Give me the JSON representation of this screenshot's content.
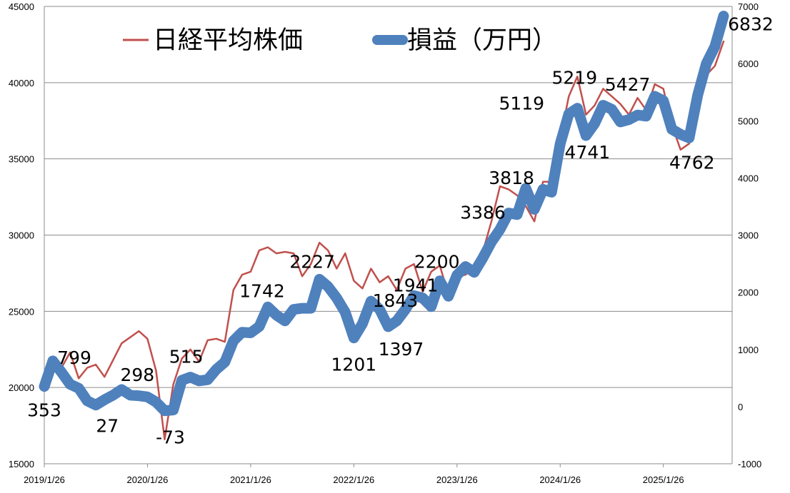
{
  "chart_data": {
    "type": "line",
    "title": "",
    "xlabel": "",
    "y_left_label": "",
    "y_right_label": "",
    "x_range": [
      "2019/1/26",
      "2025/9/26"
    ],
    "x_tick_labels": [
      "2019/1/26",
      "2020/1/26",
      "2021/1/26",
      "2022/1/26",
      "2023/1/26",
      "2024/1/26",
      "2025/1/26"
    ],
    "y_left": {
      "min": 15000,
      "max": 45000,
      "ticks": [
        "15000",
        "20000",
        "25000",
        "30000",
        "35000",
        "40000",
        "45000"
      ]
    },
    "y_right": {
      "min": -1000,
      "max": 7000,
      "ticks": [
        "-1000",
        "0",
        "1000",
        "2000",
        "3000",
        "4000",
        "5000",
        "6000",
        "7000"
      ]
    },
    "grid": "horizontal",
    "legend_position": "top",
    "series": [
      {
        "name": "日経平均株価",
        "axis": "left",
        "color": "#C0504D",
        "points": [
          [
            "2019-01",
            20800
          ],
          [
            "2019-02",
            21400
          ],
          [
            "2019-03",
            21300
          ],
          [
            "2019-04",
            22300
          ],
          [
            "2019-05",
            20600
          ],
          [
            "2019-06",
            21300
          ],
          [
            "2019-07",
            21500
          ],
          [
            "2019-08",
            20700
          ],
          [
            "2019-09",
            21800
          ],
          [
            "2019-10",
            22900
          ],
          [
            "2019-11",
            23300
          ],
          [
            "2019-12",
            23700
          ],
          [
            "2020-01",
            23200
          ],
          [
            "2020-02",
            21100
          ],
          [
            "2020-03",
            16600
          ],
          [
            "2020-04",
            20200
          ],
          [
            "2020-05",
            21900
          ],
          [
            "2020-06",
            22500
          ],
          [
            "2020-07",
            21700
          ],
          [
            "2020-08",
            23100
          ],
          [
            "2020-09",
            23200
          ],
          [
            "2020-10",
            23000
          ],
          [
            "2020-11",
            26400
          ],
          [
            "2020-12",
            27400
          ],
          [
            "2021-01",
            27600
          ],
          [
            "2021-02",
            29000
          ],
          [
            "2021-03",
            29200
          ],
          [
            "2021-04",
            28800
          ],
          [
            "2021-05",
            28900
          ],
          [
            "2021-06",
            28800
          ],
          [
            "2021-07",
            27300
          ],
          [
            "2021-08",
            28100
          ],
          [
            "2021-09",
            29500
          ],
          [
            "2021-10",
            29000
          ],
          [
            "2021-11",
            27800
          ],
          [
            "2021-12",
            28800
          ],
          [
            "2022-01",
            27000
          ],
          [
            "2022-02",
            26500
          ],
          [
            "2022-03",
            27800
          ],
          [
            "2022-04",
            26900
          ],
          [
            "2022-05",
            27300
          ],
          [
            "2022-06",
            26400
          ],
          [
            "2022-07",
            27800
          ],
          [
            "2022-08",
            28100
          ],
          [
            "2022-09",
            26300
          ],
          [
            "2022-10",
            27600
          ],
          [
            "2022-11",
            28000
          ],
          [
            "2022-12",
            26100
          ],
          [
            "2023-01",
            27300
          ],
          [
            "2023-02",
            27400
          ],
          [
            "2023-03",
            28000
          ],
          [
            "2023-04",
            28900
          ],
          [
            "2023-05",
            30900
          ],
          [
            "2023-06",
            33200
          ],
          [
            "2023-07",
            33000
          ],
          [
            "2023-08",
            32600
          ],
          [
            "2023-09",
            31900
          ],
          [
            "2023-10",
            30900
          ],
          [
            "2023-11",
            33500
          ],
          [
            "2023-12",
            33500
          ],
          [
            "2024-01",
            36300
          ],
          [
            "2024-02",
            39100
          ],
          [
            "2024-03",
            40400
          ],
          [
            "2024-04",
            37900
          ],
          [
            "2024-05",
            38500
          ],
          [
            "2024-06",
            39600
          ],
          [
            "2024-07",
            39100
          ],
          [
            "2024-08",
            38600
          ],
          [
            "2024-09",
            37900
          ],
          [
            "2024-10",
            39000
          ],
          [
            "2024-11",
            38200
          ],
          [
            "2024-12",
            39900
          ],
          [
            "2025-01",
            39600
          ],
          [
            "2025-02",
            37200
          ],
          [
            "2025-03",
            35600
          ],
          [
            "2025-04",
            36000
          ],
          [
            "2025-05",
            37800
          ],
          [
            "2025-06",
            40500
          ],
          [
            "2025-07",
            41100
          ],
          [
            "2025-08",
            42700
          ]
        ]
      },
      {
        "name": "損益（万円）",
        "axis": "right",
        "color": "#4F81BD",
        "points": [
          [
            "2019-01",
            353
          ],
          [
            "2019-02",
            799
          ],
          [
            "2019-03",
            600
          ],
          [
            "2019-04",
            390
          ],
          [
            "2019-05",
            320
          ],
          [
            "2019-06",
            100
          ],
          [
            "2019-07",
            27
          ],
          [
            "2019-08",
            120
          ],
          [
            "2019-09",
            200
          ],
          [
            "2019-10",
            298
          ],
          [
            "2019-11",
            200
          ],
          [
            "2019-12",
            190
          ],
          [
            "2020-01",
            170
          ],
          [
            "2020-02",
            80
          ],
          [
            "2020-03",
            -73
          ],
          [
            "2020-04",
            -60
          ],
          [
            "2020-05",
            460
          ],
          [
            "2020-06",
            515
          ],
          [
            "2020-07",
            450
          ],
          [
            "2020-08",
            470
          ],
          [
            "2020-09",
            650
          ],
          [
            "2020-10",
            780
          ],
          [
            "2020-11",
            1150
          ],
          [
            "2020-12",
            1300
          ],
          [
            "2021-01",
            1290
          ],
          [
            "2021-02",
            1400
          ],
          [
            "2021-03",
            1742
          ],
          [
            "2021-04",
            1600
          ],
          [
            "2021-05",
            1500
          ],
          [
            "2021-06",
            1700
          ],
          [
            "2021-07",
            1720
          ],
          [
            "2021-08",
            1720
          ],
          [
            "2021-09",
            2227
          ],
          [
            "2021-10",
            2100
          ],
          [
            "2021-11",
            1900
          ],
          [
            "2021-12",
            1650
          ],
          [
            "2022-01",
            1201
          ],
          [
            "2022-02",
            1450
          ],
          [
            "2022-03",
            1843
          ],
          [
            "2022-04",
            1700
          ],
          [
            "2022-05",
            1397
          ],
          [
            "2022-06",
            1500
          ],
          [
            "2022-07",
            1700
          ],
          [
            "2022-08",
            1941
          ],
          [
            "2022-09",
            1900
          ],
          [
            "2022-10",
            1750
          ],
          [
            "2022-11",
            2200
          ],
          [
            "2022-12",
            1930
          ],
          [
            "2023-01",
            2300
          ],
          [
            "2023-02",
            2450
          ],
          [
            "2023-03",
            2350
          ],
          [
            "2023-04",
            2600
          ],
          [
            "2023-05",
            2880
          ],
          [
            "2023-06",
            3100
          ],
          [
            "2023-07",
            3386
          ],
          [
            "2023-08",
            3360
          ],
          [
            "2023-09",
            3818
          ],
          [
            "2023-10",
            3450
          ],
          [
            "2023-11",
            3800
          ],
          [
            "2023-12",
            3750
          ],
          [
            "2024-01",
            4600
          ],
          [
            "2024-02",
            5119
          ],
          [
            "2024-03",
            5219
          ],
          [
            "2024-04",
            4741
          ],
          [
            "2024-05",
            4950
          ],
          [
            "2024-06",
            5270
          ],
          [
            "2024-07",
            5200
          ],
          [
            "2024-08",
            4980
          ],
          [
            "2024-09",
            5020
          ],
          [
            "2024-10",
            5100
          ],
          [
            "2024-11",
            5080
          ],
          [
            "2024-12",
            5427
          ],
          [
            "2025-01",
            5350
          ],
          [
            "2025-02",
            4850
          ],
          [
            "2025-03",
            4762
          ],
          [
            "2025-04",
            4700
          ],
          [
            "2025-05",
            5450
          ],
          [
            "2025-06",
            6000
          ],
          [
            "2025-07",
            6300
          ],
          [
            "2025-08",
            6832
          ]
        ]
      }
    ],
    "annotations": [
      {
        "text": "353",
        "x": "2019-01",
        "value": 353
      },
      {
        "text": "799",
        "x": "2019-02",
        "value": 799
      },
      {
        "text": "27",
        "x": "2019-07",
        "value": 27
      },
      {
        "text": "298",
        "x": "2019-10",
        "value": 298
      },
      {
        "text": "-73",
        "x": "2020-03",
        "value": -73
      },
      {
        "text": "515",
        "x": "2020-06",
        "value": 515
      },
      {
        "text": "1742",
        "x": "2021-03",
        "value": 1742
      },
      {
        "text": "2227",
        "x": "2021-09",
        "value": 2227
      },
      {
        "text": "1201",
        "x": "2022-01",
        "value": 1201
      },
      {
        "text": "1843",
        "x": "2022-03",
        "value": 1843
      },
      {
        "text": "1397",
        "x": "2022-05",
        "value": 1397
      },
      {
        "text": "1941",
        "x": "2022-08",
        "value": 1941
      },
      {
        "text": "2200",
        "x": "2022-11",
        "value": 2200
      },
      {
        "text": "3386",
        "x": "2023-07",
        "value": 3386
      },
      {
        "text": "3818",
        "x": "2023-09",
        "value": 3818
      },
      {
        "text": "5119",
        "x": "2024-02",
        "value": 5119
      },
      {
        "text": "5219",
        "x": "2024-03",
        "value": 5219
      },
      {
        "text": "4741",
        "x": "2024-04",
        "value": 4741
      },
      {
        "text": "5427",
        "x": "2024-12",
        "value": 5427
      },
      {
        "text": "4762",
        "x": "2025-03",
        "value": 4762
      },
      {
        "text": "6832",
        "x": "2025-08",
        "value": 6832
      }
    ]
  }
}
